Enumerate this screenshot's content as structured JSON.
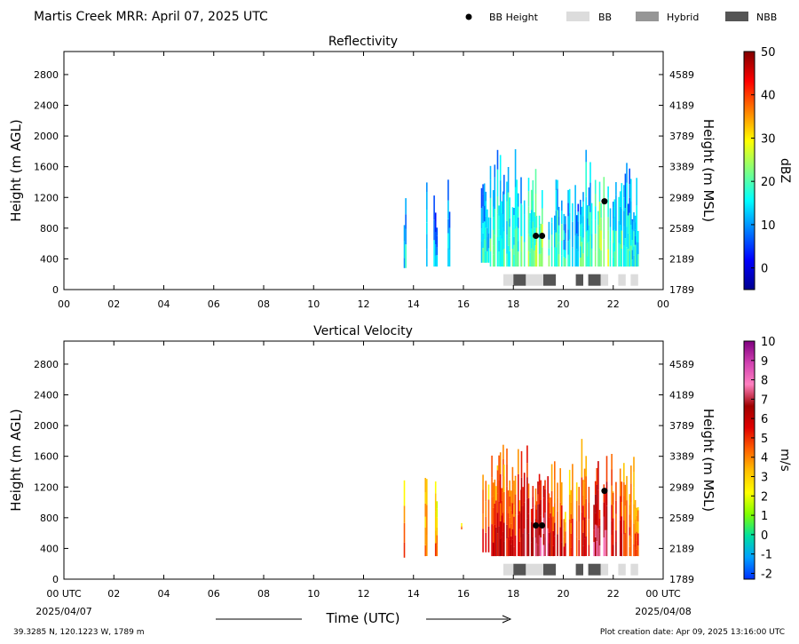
{
  "header": {
    "title": "Martis Creek MRR:  April 07, 2025 UTC",
    "legend": [
      {
        "label": "BB Height",
        "kind": "dot",
        "color": "#000000"
      },
      {
        "label": "BB",
        "kind": "rect",
        "color": "#dcdcdc"
      },
      {
        "label": "Hybrid",
        "kind": "rect",
        "color": "#969696"
      },
      {
        "label": "NBB",
        "kind": "rect",
        "color": "#555555"
      }
    ]
  },
  "footer": {
    "left": "39.3285 N, 120.1223 W, 1789 m",
    "right": "Plot creation date: Apr 09, 2025 13:16:00 UTC",
    "date_start": "2025/04/07",
    "date_end": "2025/04/08",
    "xlabel": "Time (UTC)"
  },
  "chart_data": [
    {
      "type": "heatmap",
      "title": "Reflectivity",
      "ylabel": "Height (m AGL)",
      "ylabel_right": "Height (m MSL)",
      "xlim": [
        0,
        24
      ],
      "ylim": [
        0,
        3100
      ],
      "x_ticks": [
        "00",
        "02",
        "04",
        "06",
        "08",
        "10",
        "12",
        "14",
        "16",
        "18",
        "20",
        "22",
        "00"
      ],
      "y_ticks": [
        0,
        400,
        800,
        1200,
        1600,
        2000,
        2400,
        2800
      ],
      "y_ticks_right": [
        1789,
        2189,
        2589,
        2989,
        3389,
        3789,
        4189,
        4589
      ],
      "colorbar": {
        "label": "dBZ",
        "min": -5,
        "max": 50,
        "ticks": [
          0,
          10,
          20,
          30,
          40,
          50
        ],
        "colors": [
          "#00008f",
          "#0000ff",
          "#0080ff",
          "#00ffff",
          "#80ff80",
          "#ffff00",
          "#ff8000",
          "#ff0000",
          "#800000"
        ]
      },
      "bb_height_points": [
        {
          "x": 18.9,
          "y": 700
        },
        {
          "x": 19.15,
          "y": 700
        },
        {
          "x": 21.65,
          "y": 1150
        }
      ],
      "bb_type_blocks": [
        {
          "start": 17.6,
          "end": 18.0,
          "type": "BB"
        },
        {
          "start": 18.0,
          "end": 18.5,
          "type": "NBB"
        },
        {
          "start": 18.5,
          "end": 19.2,
          "type": "BB"
        },
        {
          "start": 19.2,
          "end": 19.7,
          "type": "NBB"
        },
        {
          "start": 20.5,
          "end": 20.8,
          "type": "NBB"
        },
        {
          "start": 21.0,
          "end": 21.5,
          "type": "NBB"
        },
        {
          "start": 21.5,
          "end": 21.8,
          "type": "BB"
        },
        {
          "start": 22.2,
          "end": 22.5,
          "type": "BB"
        },
        {
          "start": 22.7,
          "end": 23.0,
          "type": "BB"
        }
      ]
    },
    {
      "type": "heatmap",
      "title": "Vertical Velocity",
      "ylabel": "Height (m AGL)",
      "ylabel_right": "Height (m MSL)",
      "xlim": [
        0,
        24
      ],
      "ylim": [
        0,
        3100
      ],
      "x_ticks": [
        "00 UTC",
        "02",
        "04",
        "06",
        "08",
        "10",
        "12",
        "14",
        "16",
        "18",
        "20",
        "22",
        "00 UTC"
      ],
      "y_ticks": [
        0,
        400,
        800,
        1200,
        1600,
        2000,
        2400,
        2800
      ],
      "y_ticks_right": [
        1789,
        2189,
        2589,
        2989,
        3389,
        3789,
        4189,
        4589
      ],
      "colorbar": {
        "label": "m/s",
        "min": -2.3,
        "max": 10,
        "ticks": [
          -2,
          -1,
          0,
          1,
          2,
          3,
          4,
          5,
          6,
          7,
          8,
          9,
          10
        ],
        "colors": [
          "#0030ff",
          "#00a0ff",
          "#00e0a0",
          "#80ff00",
          "#ffff00",
          "#ffc000",
          "#ff6000",
          "#e00000",
          "#a00000",
          "#ff80c0",
          "#d040b0",
          "#800080"
        ]
      },
      "bb_height_points": [
        {
          "x": 18.9,
          "y": 700
        },
        {
          "x": 19.15,
          "y": 700
        },
        {
          "x": 21.65,
          "y": 1150
        }
      ],
      "bb_type_blocks": [
        {
          "start": 17.6,
          "end": 18.0,
          "type": "BB"
        },
        {
          "start": 18.0,
          "end": 18.5,
          "type": "NBB"
        },
        {
          "start": 18.5,
          "end": 19.2,
          "type": "BB"
        },
        {
          "start": 19.2,
          "end": 19.7,
          "type": "NBB"
        },
        {
          "start": 20.5,
          "end": 20.8,
          "type": "NBB"
        },
        {
          "start": 21.0,
          "end": 21.5,
          "type": "NBB"
        },
        {
          "start": 21.5,
          "end": 21.8,
          "type": "BB"
        },
        {
          "start": 22.2,
          "end": 22.5,
          "type": "BB"
        },
        {
          "start": 22.7,
          "end": 23.0,
          "type": "BB"
        }
      ]
    }
  ]
}
